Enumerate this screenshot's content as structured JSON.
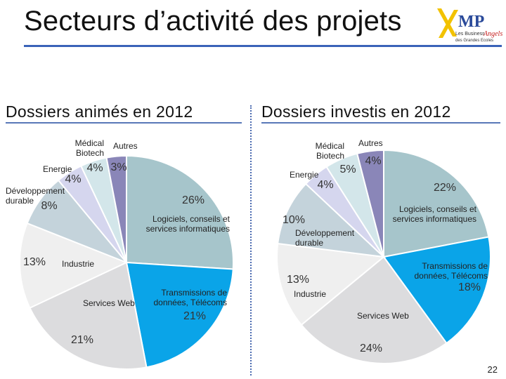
{
  "page": {
    "title": "Secteurs d’activité des projets",
    "page_number": "22",
    "logo": {
      "mark": "MP",
      "line1": "Les Business",
      "script": "Angels",
      "line2": "des Grandes Ecoles"
    }
  },
  "chart_data": [
    {
      "type": "pie",
      "title": "Dossiers animés en 2012",
      "unit": "%",
      "slices": [
        {
          "label": "Logiciels, conseils et services informatiques",
          "value": 26,
          "pct": "26%",
          "color": "#a6c5cb"
        },
        {
          "label": "Transmissions de données, Télécoms",
          "value": 21,
          "pct": "21%",
          "color": "#0aa4e8"
        },
        {
          "label": "Services Web",
          "value": 21,
          "pct": "21%",
          "color": "#dcdcde"
        },
        {
          "label": "Industrie",
          "value": 13,
          "pct": "13%",
          "color": "#efefef"
        },
        {
          "label": "Développement durable",
          "value": 8,
          "pct": "8%",
          "color": "#c4d3db"
        },
        {
          "label": "Energie",
          "value": 4,
          "pct": "4%",
          "color": "#d5d6ee"
        },
        {
          "label": "Médical Biotech",
          "value": 4,
          "pct": "4%",
          "color": "#d3e6ea"
        },
        {
          "label": "Autres",
          "value": 3,
          "pct": "3%",
          "color": "#8a86b8"
        }
      ]
    },
    {
      "type": "pie",
      "title": "Dossiers investis en 2012",
      "unit": "%",
      "slices": [
        {
          "label": "Logiciels, conseils et services informatiques",
          "value": 22,
          "pct": "22%",
          "color": "#a6c5cb"
        },
        {
          "label": "Transmissions de données, Télécoms",
          "value": 18,
          "pct": "18%",
          "color": "#0aa4e8"
        },
        {
          "label": "Services Web",
          "value": 24,
          "pct": "24%",
          "color": "#dcdcde"
        },
        {
          "label": "Industrie",
          "value": 13,
          "pct": "13%",
          "color": "#efefef"
        },
        {
          "label": "Développement durable",
          "value": 10,
          "pct": "10%",
          "color": "#c4d3db"
        },
        {
          "label": "Energie",
          "value": 4,
          "pct": "4%",
          "color": "#d5d6ee"
        },
        {
          "label": "Médical Biotech",
          "value": 5,
          "pct": "5%",
          "color": "#d3e6ea"
        },
        {
          "label": "Autres",
          "value": 4,
          "pct": "4%",
          "color": "#8a86b8"
        }
      ]
    }
  ]
}
